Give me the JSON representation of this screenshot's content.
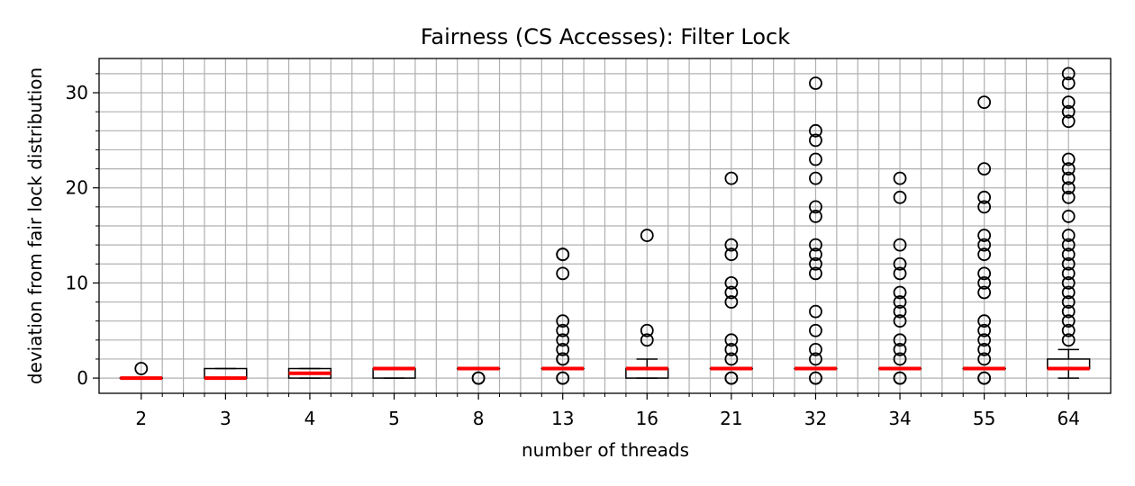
{
  "chart_data": {
    "type": "box",
    "title": "Fairness (CS Accesses): Filter Lock",
    "xlabel": "number of threads",
    "ylabel": "deviation from fair lock distribution",
    "categories": [
      "2",
      "3",
      "4",
      "5",
      "8",
      "13",
      "16",
      "21",
      "32",
      "34",
      "55",
      "64"
    ],
    "ylim": [
      -1.6,
      33.6
    ],
    "yticks": [
      0,
      10,
      20,
      30
    ],
    "grid": true,
    "minor_grid": true,
    "colors": {
      "box": "#000000",
      "median": "#ff0000",
      "grid": "#b0b0b0",
      "flier": "#000000"
    },
    "boxes": [
      {
        "category": "2",
        "whisker_low": 0,
        "q1": 0,
        "median": 0,
        "q3": 0,
        "whisker_high": 0,
        "fliers": [
          1
        ]
      },
      {
        "category": "3",
        "whisker_low": 0,
        "q1": 0,
        "median": 0,
        "q3": 1,
        "whisker_high": 1,
        "fliers": []
      },
      {
        "category": "4",
        "whisker_low": 0,
        "q1": 0,
        "median": 0.5,
        "q3": 1,
        "whisker_high": 1,
        "fliers": []
      },
      {
        "category": "5",
        "whisker_low": 0,
        "q1": 0,
        "median": 1,
        "q3": 1,
        "whisker_high": 1,
        "fliers": []
      },
      {
        "category": "8",
        "whisker_low": 1,
        "q1": 1,
        "median": 1,
        "q3": 1,
        "whisker_high": 1,
        "fliers": [
          0,
          0
        ]
      },
      {
        "category": "13",
        "whisker_low": 1,
        "q1": 1,
        "median": 1,
        "q3": 1,
        "whisker_high": 1,
        "fliers": [
          0,
          0,
          2,
          2,
          3,
          4,
          5,
          6,
          11,
          13,
          13
        ]
      },
      {
        "category": "16",
        "whisker_low": 0,
        "q1": 0,
        "median": 1,
        "q3": 1,
        "whisker_high": 2,
        "fliers": [
          4,
          5,
          15
        ]
      },
      {
        "category": "21",
        "whisker_low": 1,
        "q1": 1,
        "median": 1,
        "q3": 1,
        "whisker_high": 1,
        "fliers": [
          0,
          0,
          2,
          3,
          4,
          8,
          9,
          10,
          13,
          14,
          21
        ]
      },
      {
        "category": "32",
        "whisker_low": 1,
        "q1": 1,
        "median": 1,
        "q3": 1,
        "whisker_high": 1,
        "fliers": [
          0,
          0,
          2,
          3,
          5,
          7,
          11,
          12,
          13,
          14,
          17,
          18,
          21,
          23,
          25,
          26,
          31
        ]
      },
      {
        "category": "34",
        "whisker_low": 1,
        "q1": 1,
        "median": 1,
        "q3": 1,
        "whisker_high": 1,
        "fliers": [
          0,
          0,
          2,
          3,
          4,
          6,
          7,
          8,
          9,
          11,
          12,
          14,
          19,
          21
        ]
      },
      {
        "category": "55",
        "whisker_low": 1,
        "q1": 1,
        "median": 1,
        "q3": 1,
        "whisker_high": 1,
        "fliers": [
          0,
          0,
          2,
          3,
          4,
          5,
          6,
          9,
          10,
          11,
          13,
          14,
          15,
          18,
          19,
          22,
          29
        ]
      },
      {
        "category": "64",
        "whisker_low": 0,
        "q1": 1,
        "median": 1,
        "q3": 2,
        "whisker_high": 3,
        "fliers": [
          4,
          5,
          6,
          7,
          8,
          9,
          10,
          11,
          12,
          13,
          14,
          15,
          17,
          19,
          20,
          21,
          22,
          23,
          27,
          28,
          29,
          31,
          32
        ]
      }
    ]
  }
}
